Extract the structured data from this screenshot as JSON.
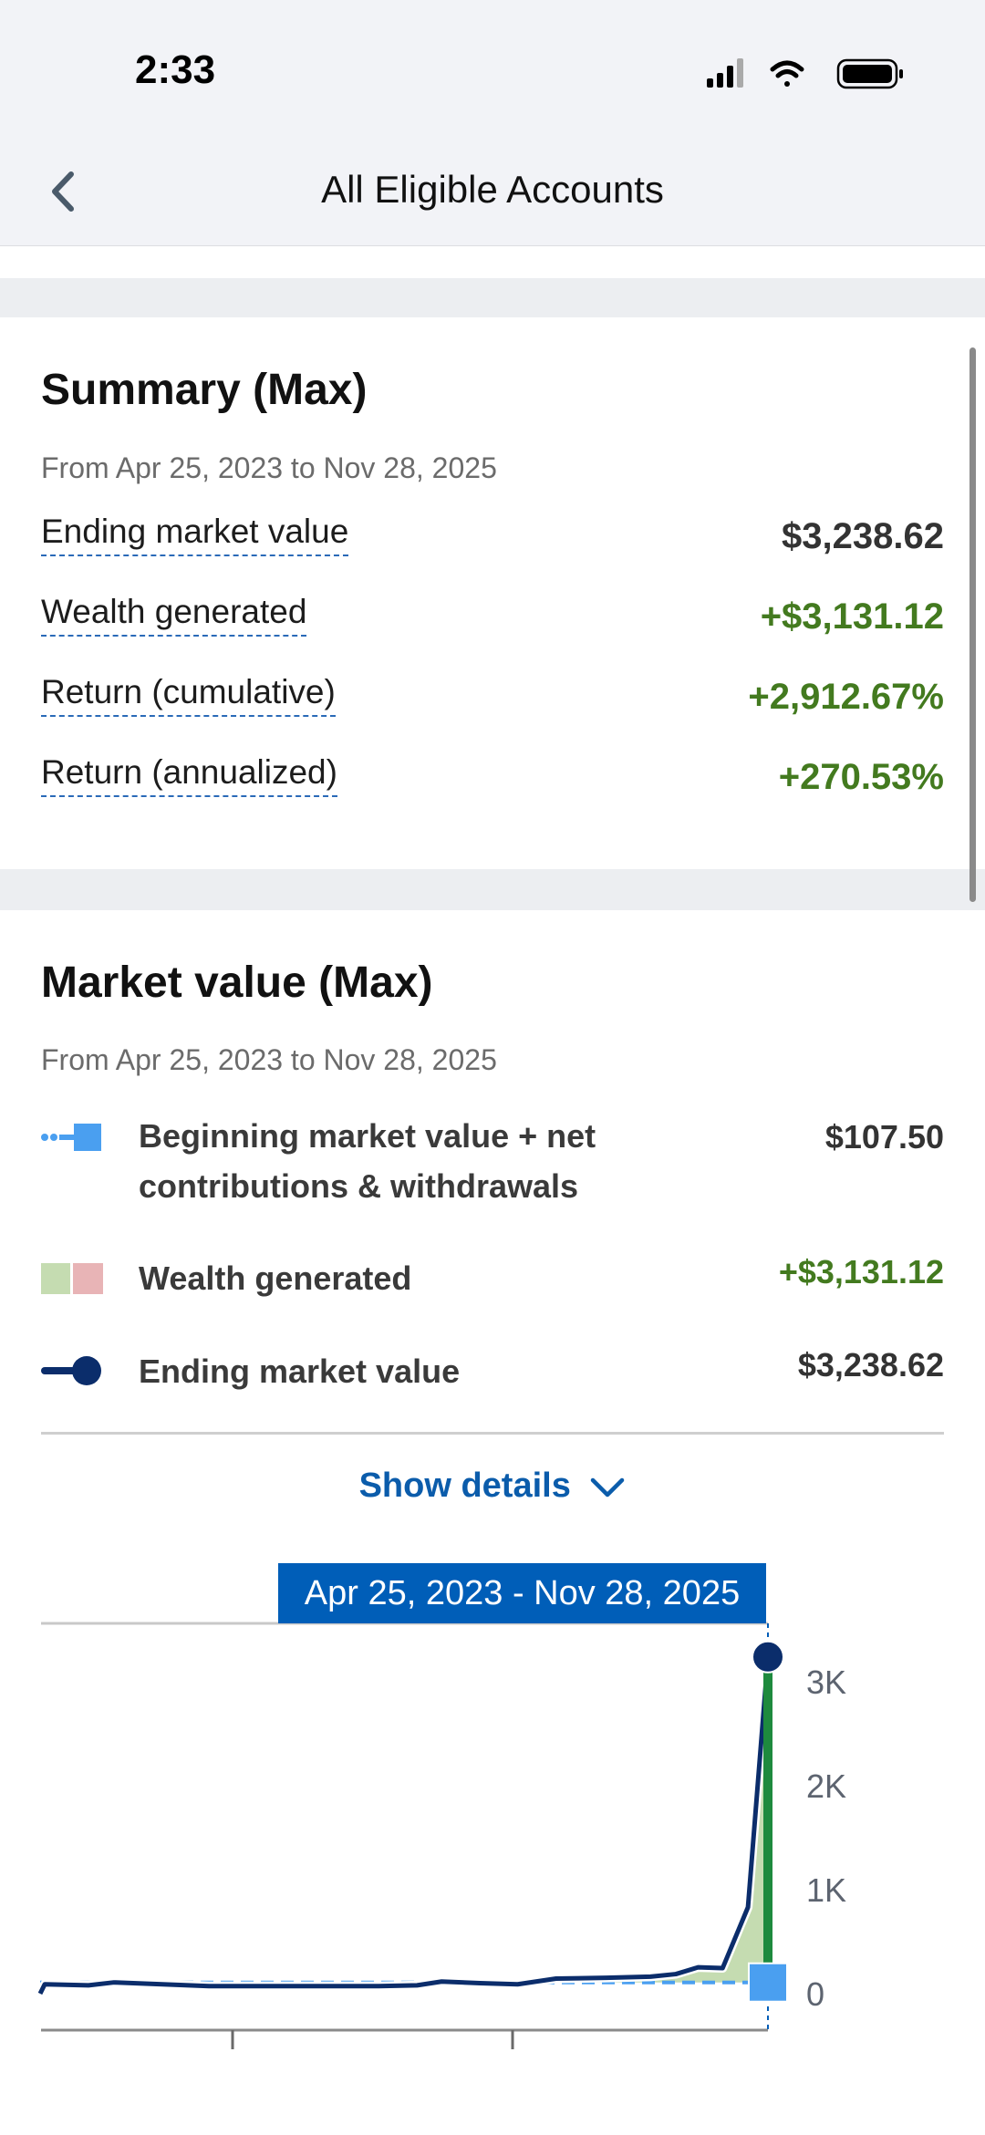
{
  "status_bar": {
    "time": "2:33",
    "icons": [
      "cellular-signal-icon",
      "wifi-icon",
      "battery-icon"
    ]
  },
  "nav": {
    "title": "All Eligible Accounts",
    "back_icon": "chevron-left-icon"
  },
  "summary": {
    "title": "Summary (Max)",
    "subtitle": "From Apr 25, 2023 to Nov 28, 2025",
    "rows": [
      {
        "label": "Ending market value",
        "value": "$3,238.62"
      },
      {
        "label": "Wealth generated",
        "value": "+$3,131.12"
      },
      {
        "label": "Return (cumulative)",
        "value": "+2,912.67%"
      },
      {
        "label": "Return (annualized)",
        "value": "+270.53%"
      }
    ]
  },
  "market_value": {
    "title": "Market value (Max)",
    "subtitle": "From Apr 25, 2023 to Nov 28, 2025",
    "legend": [
      {
        "label_line1": "Beginning market value + net",
        "label_line2": "contributions & withdrawals",
        "value": "$107.50"
      },
      {
        "label": "Wealth generated",
        "value": "+$3,131.12"
      },
      {
        "label": "Ending market value",
        "value": "$3,238.62"
      }
    ],
    "show_details": "Show details",
    "tooltip": "Apr 25, 2023 - Nov 28, 2025"
  },
  "colors": {
    "positive": "#437a1f",
    "link": "#0b5cab",
    "ending_line": "#0b2d6b",
    "beginning_line": "#4a9ff0",
    "wealth_gain": "#c5dcb1",
    "wealth_loss": "#e8b4b6",
    "wealth_bar": "#1e8a3e"
  },
  "chart_data": {
    "type": "area",
    "y_ticks": [
      "0",
      "1K",
      "2K",
      "3K"
    ],
    "ylim": [
      0,
      3300
    ],
    "y_axis_position": "right",
    "grid": false,
    "series": [
      {
        "name": "Ending market value",
        "type": "line",
        "x": [
          "2023-04-25",
          "2023-05-01",
          "2023-06-27",
          "2023-07-30",
          "2023-12-01",
          "2024-02-12",
          "2024-07-09",
          "2024-08-28",
          "2024-09-29",
          "2024-11-18",
          "2025-01-06",
          "2025-02-25",
          "2025-05-01",
          "2025-06-28",
          "2025-07-31",
          "2025-08-29",
          "2025-09-30",
          "2025-11-02",
          "2025-11-28"
        ],
        "values": [
          0,
          90,
          80,
          108,
          72,
          72,
          72,
          80,
          116,
          101,
          90,
          145,
          152,
          163,
          188,
          253,
          246,
          831,
          3238.62
        ]
      },
      {
        "name": "Beginning market value + net contributions & withdrawals",
        "type": "dashed-line",
        "x": [
          "2023-04-25",
          "2025-11-28"
        ],
        "values": [
          107.5,
          107.5
        ]
      }
    ]
  }
}
